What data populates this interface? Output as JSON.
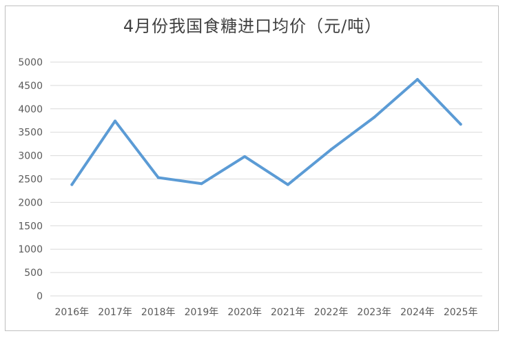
{
  "chart_data": {
    "type": "line",
    "title": "4月份我国食糖进口均价（元/吨）",
    "categories": [
      "2016年",
      "2017年",
      "2018年",
      "2019年",
      "2020年",
      "2021年",
      "2022年",
      "2023年",
      "2024年",
      "2025年"
    ],
    "series": [
      {
        "values": [
          2380,
          3740,
          2530,
          2400,
          2980,
          2380,
          3130,
          3820,
          4630,
          3670
        ]
      }
    ],
    "ylim": [
      0,
      5000
    ],
    "yticks": [
      0,
      500,
      1000,
      1500,
      2000,
      2500,
      3000,
      3500,
      4000,
      4500,
      5000
    ],
    "grid": true,
    "line_color": "#5b9bd5",
    "grid_color": "#d9d9d9"
  }
}
